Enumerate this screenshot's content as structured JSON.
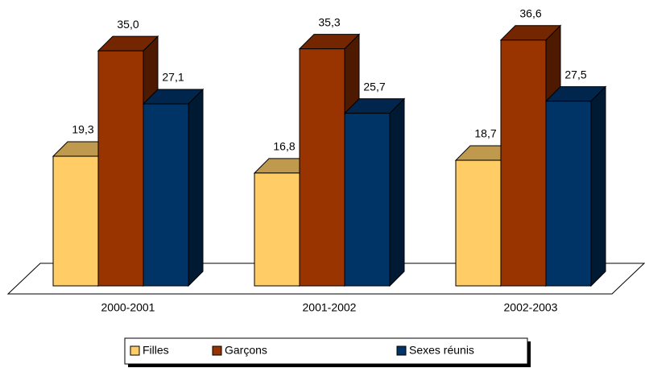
{
  "chart_data": {
    "type": "bar3d",
    "categories": [
      "2000-2001",
      "2001-2002",
      "2002-2003"
    ],
    "series": [
      {
        "name": "Filles",
        "color": "#ffcc66",
        "values": [
          19.3,
          16.8,
          18.7
        ],
        "value_labels": [
          "19,3",
          "16,8",
          "18,7"
        ]
      },
      {
        "name": "Garçons",
        "color": "#993300",
        "values": [
          35.0,
          35.3,
          36.6
        ],
        "value_labels": [
          "35,0",
          "35,3",
          "36,6"
        ]
      },
      {
        "name": "Sexes réunis",
        "color": "#003366",
        "values": [
          27.1,
          25.7,
          27.5
        ],
        "value_labels": [
          "27,1",
          "25,7",
          "27,5"
        ]
      }
    ],
    "legend": "bottom"
  }
}
